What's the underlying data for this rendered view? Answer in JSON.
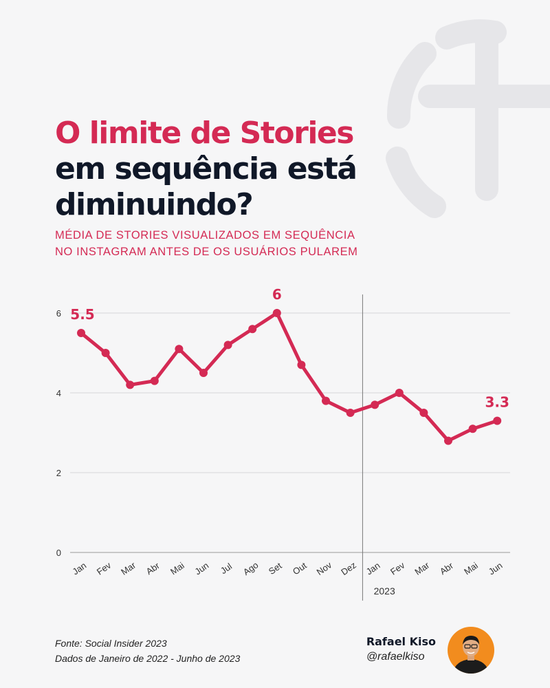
{
  "title": {
    "line1": "O limite de Stories",
    "line2": "em sequência está",
    "line3": "diminuindo?"
  },
  "subtitle": {
    "line1": "MÉDIA DE STORIES VISUALIZADOS EM SEQUÊNCIA",
    "line2": "NO INSTAGRAM ANTES DE OS USUÁRIOS PULAREM"
  },
  "chart_data": {
    "type": "line",
    "categories": [
      "Jan",
      "Fev",
      "Mar",
      "Abr",
      "Mai",
      "Jun",
      "Jul",
      "Ago",
      "Set",
      "Out",
      "Nov",
      "Dez",
      "Jan",
      "Fev",
      "Mar",
      "Abr",
      "Mai",
      "Jun"
    ],
    "series": [
      {
        "values": [
          5.5,
          5.0,
          4.2,
          4.3,
          5.1,
          4.5,
          5.2,
          5.6,
          6.0,
          4.7,
          3.8,
          3.5,
          3.7,
          4.0,
          3.5,
          2.8,
          3.1,
          3.3
        ]
      }
    ],
    "yticks": [
      0,
      2,
      4,
      6
    ],
    "ylim": [
      0,
      6
    ],
    "grid": true,
    "annotations": [
      {
        "index": 0,
        "text": "5.5"
      },
      {
        "index": 8,
        "text": "6"
      },
      {
        "index": 17,
        "text": "3.3"
      }
    ],
    "divider_label": "2023",
    "line_color": "#d42a54"
  },
  "source": {
    "line1": "Fonte: Social Insider 2023",
    "line2": "Dados de Janeiro de 2022 - Junho de 2023"
  },
  "author": {
    "name": "Rafael Kiso",
    "handle": "@rafaelkiso"
  },
  "colors": {
    "accent": "#d42a54",
    "dark": "#101828",
    "background": "#f6f6f7"
  }
}
